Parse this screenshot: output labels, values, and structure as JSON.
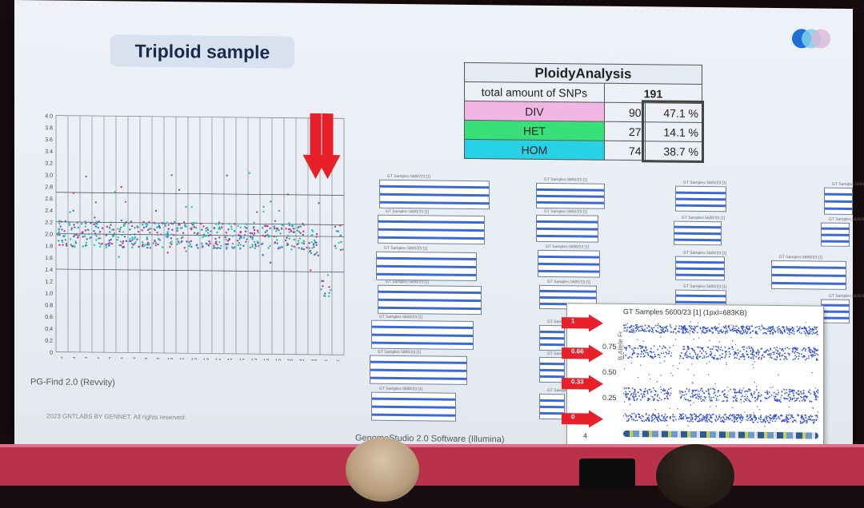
{
  "slide": {
    "title": "Triploid sample",
    "logo_colors": [
      "#1f6fd6",
      "#7fd0f0",
      "#d9b8d8"
    ]
  },
  "ploidy_table": {
    "header": "PloidyAnalysis",
    "total_label": "total amount of SNPs",
    "total_value": "191",
    "rows": [
      {
        "label": "DIV",
        "count": "90",
        "percent": "47.1 %",
        "color": "#f2b6e4"
      },
      {
        "label": "HET",
        "count": "27",
        "percent": "14.1 %",
        "color": "#38e07a"
      },
      {
        "label": "HOM",
        "count": "74",
        "percent": "38.7 %",
        "color": "#28d2e6"
      }
    ]
  },
  "pgfind": {
    "caption": "PG-Find 2.0 (Revvity)",
    "copyright": "2023 GNTLABS BY GENNET. All rights reserved.",
    "chart_data": {
      "type": "scatter",
      "y_ticks": [
        "0",
        "0.2",
        "0.4",
        "0.6",
        "0.8",
        "1.0",
        "1.2",
        "1.4",
        "1.6",
        "1.8",
        "2.0",
        "2.2",
        "2.4",
        "2.6",
        "2.8",
        "3.0",
        "3.2",
        "3.4",
        "3.6",
        "3.8",
        "4.0"
      ],
      "x_ticks": [
        "1",
        "2",
        "3",
        "4",
        "5",
        "6",
        "7",
        "8",
        "9",
        "10",
        "11",
        "12",
        "13",
        "14",
        "15",
        "16",
        "17",
        "18",
        "19",
        "20",
        "21",
        "22",
        "X",
        "Y"
      ],
      "ylim": [
        0,
        4
      ],
      "horizontal_lines": [
        2.7,
        2.2,
        2.0,
        1.4
      ],
      "series_colors": [
        "#2bb2a6",
        "#3a6bd8",
        "#d22a8a",
        "#22c8c8",
        "#a84ab0",
        "#2ac08a"
      ],
      "highlight_arrows": [
        "22",
        "X"
      ]
    }
  },
  "genomestudio": {
    "caption": "GenomeStudio 2.0 Software (Illumina)",
    "panel_title": "GT Samples 5600/23 [1]",
    "zoom_title": "GT Samples 5600/23 [1] (1pxl=683KB)",
    "zoom_y_ticks": [
      "0.75",
      "0.50",
      "0.25"
    ],
    "zoom_axis_label": "B Allele Fr",
    "zoom_bottom_tick": "4",
    "arrow_labels": [
      "1",
      "0.66",
      "0.33",
      "0"
    ],
    "band_values": [
      0.92,
      0.7,
      0.3,
      0.08
    ]
  }
}
